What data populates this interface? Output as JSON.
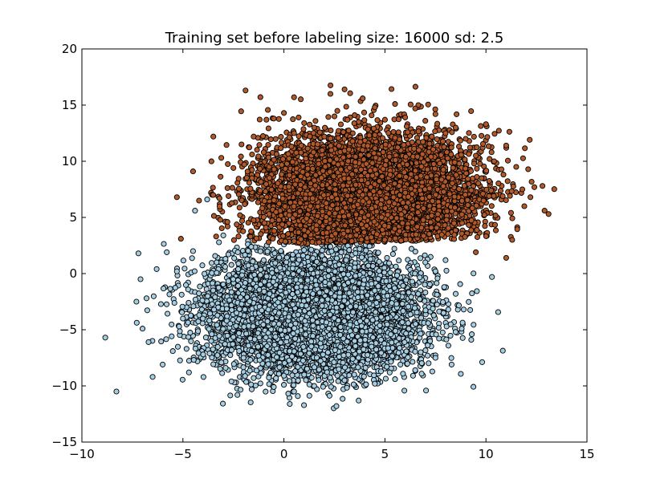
{
  "chart_data": {
    "type": "scatter",
    "title": "Training set before labeling size: 16000 sd: 2.5",
    "xlabel": "",
    "ylabel": "",
    "xlim": [
      -10,
      15
    ],
    "ylim": [
      -15,
      20
    ],
    "x_ticks": [
      "−10",
      "−5",
      "0",
      "5",
      "10",
      "15"
    ],
    "x_tick_values": [
      -10,
      -5,
      0,
      5,
      10,
      15
    ],
    "y_ticks": [
      "−15",
      "−10",
      "−5",
      "0",
      "5",
      "10",
      "15",
      "20"
    ],
    "y_tick_values": [
      -15,
      -10,
      -5,
      0,
      5,
      10,
      15,
      20
    ],
    "grid": false,
    "legend": "none",
    "series": [
      {
        "color": "#a6cee3",
        "edge_color": "#000000",
        "center": [
          1.5,
          -3.5
        ],
        "sd": 2.5,
        "points": [
          [
            -7.3,
            -2.5
          ],
          [
            -7.2,
            1.8
          ],
          [
            -7.1,
            -0.5
          ],
          [
            -7.0,
            -4.9
          ],
          [
            -6.8,
            -2.2
          ],
          [
            -6.7,
            -6.1
          ],
          [
            -6.5,
            -9.2
          ],
          [
            -6.3,
            0.4
          ],
          [
            -6.0,
            -8.1
          ],
          [
            -5.8,
            1.9
          ],
          [
            -5.5,
            -6.9
          ],
          [
            -5.3,
            0.2
          ],
          [
            -5.0,
            -4.0
          ],
          [
            -4.7,
            -8.8
          ],
          [
            -4.5,
            2.0
          ],
          [
            -4.4,
            5.6
          ],
          [
            -4.0,
            -7.2
          ],
          [
            -3.8,
            6.6
          ],
          [
            -3.5,
            -1.5
          ],
          [
            -3.0,
            3.4
          ],
          [
            -2.6,
            -9.6
          ],
          [
            -2.3,
            -10.8
          ],
          [
            -2.0,
            -7.5
          ],
          [
            -1.5,
            -9.3
          ],
          [
            -1.0,
            1.2
          ],
          [
            -0.5,
            -10.1
          ],
          [
            0.0,
            -9.9
          ],
          [
            0.5,
            -10.5
          ],
          [
            1.0,
            -9.0
          ],
          [
            1.5,
            -10.0
          ],
          [
            2.0,
            3.2
          ],
          [
            2.6,
            -11.8
          ],
          [
            3.0,
            -9.5
          ],
          [
            3.7,
            -11.3
          ],
          [
            4.5,
            -9.8
          ],
          [
            5.0,
            3.0
          ],
          [
            5.5,
            -9.4
          ],
          [
            6.5,
            -8.6
          ],
          [
            7.0,
            1.0
          ],
          [
            7.5,
            -7.5
          ],
          [
            7.9,
            -3.5
          ],
          [
            8.0,
            1.2
          ],
          [
            8.3,
            -8.1
          ],
          [
            8.5,
            -1.8
          ],
          [
            8.8,
            -4.9
          ],
          [
            8.9,
            -3.2
          ],
          [
            9.3,
            -5.4
          ],
          [
            10.3,
            -0.3
          ]
        ]
      },
      {
        "color": "#b15928",
        "edge_color": "#000000",
        "center": [
          4.0,
          7.0
        ],
        "sd": 2.5,
        "points": [
          [
            -5.3,
            6.8
          ],
          [
            -5.1,
            3.1
          ],
          [
            -4.5,
            9.1
          ],
          [
            -4.2,
            6.5
          ],
          [
            -3.5,
            7.0
          ],
          [
            -3.1,
            10.3
          ],
          [
            -2.8,
            4.6
          ],
          [
            -2.5,
            9.4
          ],
          [
            -2.1,
            11.5
          ],
          [
            -1.9,
            16.3
          ],
          [
            -1.5,
            12.2
          ],
          [
            -1.0,
            10.8
          ],
          [
            -0.5,
            13.8
          ],
          [
            0.0,
            14.3
          ],
          [
            0.5,
            12.5
          ],
          [
            0.5,
            15.7
          ],
          [
            1.0,
            13.4
          ],
          [
            1.5,
            13.0
          ],
          [
            2.0,
            12.2
          ],
          [
            2.3,
            16.0
          ],
          [
            2.5,
            14.0
          ],
          [
            3.0,
            16.4
          ],
          [
            3.5,
            14.1
          ],
          [
            3.9,
            15.6
          ],
          [
            4.5,
            14.8
          ],
          [
            5.0,
            13.7
          ],
          [
            5.5,
            15.1
          ],
          [
            6.0,
            13.9
          ],
          [
            6.5,
            14.7
          ],
          [
            7.0,
            13.6
          ],
          [
            7.5,
            14.2
          ],
          [
            8.0,
            12.5
          ],
          [
            8.5,
            13.0
          ],
          [
            9.0,
            12.0
          ],
          [
            9.5,
            10.5
          ],
          [
            10.0,
            13.3
          ],
          [
            10.4,
            10.0
          ],
          [
            11.0,
            11.4
          ],
          [
            11.5,
            9.5
          ],
          [
            11.8,
            7.5
          ],
          [
            11.9,
            6.0
          ],
          [
            12.2,
            6.8
          ],
          [
            12.8,
            7.8
          ],
          [
            12.9,
            5.6
          ],
          [
            13.1,
            5.3
          ],
          [
            11.3,
            3.0
          ],
          [
            11.0,
            1.4
          ],
          [
            9.5,
            1.9
          ]
        ]
      }
    ]
  }
}
